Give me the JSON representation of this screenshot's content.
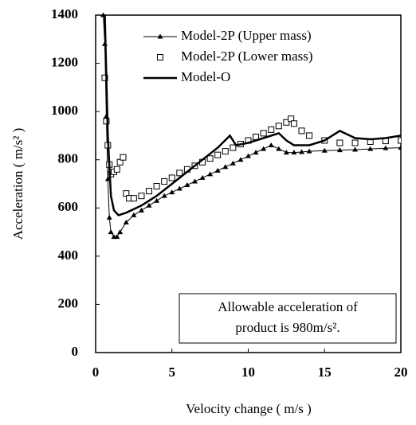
{
  "chart_data": {
    "type": "line",
    "x_label": "Velocity change ( m/s )",
    "y_label": "Acceleration ( m/s² )",
    "annotation": [
      "Allowable acceleration of",
      "product is 980m/s²."
    ],
    "xlim": [
      0,
      20
    ],
    "xticks": [
      0,
      5,
      10,
      15,
      20
    ],
    "ylim": [
      0,
      1400
    ],
    "yticks": [
      0,
      200,
      400,
      600,
      800,
      1000,
      1200,
      1400
    ],
    "grid": false,
    "legend": "upper left",
    "series": [
      {
        "name": "Model-2P (Upper mass)",
        "color": "#000000",
        "marker": "triangle",
        "line_width": 1,
        "x": [
          0.5,
          0.6,
          0.7,
          0.8,
          0.9,
          1.0,
          1.2,
          1.4,
          1.6,
          2,
          2.5,
          3,
          3.5,
          4,
          4.5,
          5,
          5.5,
          6,
          6.5,
          7,
          7.5,
          8,
          8.5,
          9,
          9.5,
          10,
          10.5,
          11,
          11.5,
          12,
          12.5,
          13,
          13.5,
          14,
          15,
          16,
          17,
          18,
          19,
          20
        ],
        "values": [
          1400,
          1280,
          980,
          720,
          560,
          500,
          480,
          480,
          500,
          540,
          570,
          590,
          610,
          630,
          650,
          665,
          680,
          695,
          710,
          725,
          740,
          755,
          770,
          785,
          800,
          815,
          830,
          845,
          860,
          845,
          830,
          830,
          832,
          835,
          838,
          840,
          842,
          845,
          848,
          850
        ]
      },
      {
        "name": "Model-2P (Lower mass)",
        "color": "#000000",
        "marker": "square",
        "line_width": 0,
        "x": [
          0.6,
          0.7,
          0.8,
          0.9,
          1.0,
          1.2,
          1.4,
          1.6,
          1.8,
          2.0,
          2.2,
          2.5,
          3,
          3.5,
          4,
          4.5,
          5,
          5.5,
          6,
          6.5,
          7,
          7.5,
          8,
          8.5,
          9,
          9.5,
          10,
          10.5,
          11,
          11.5,
          12,
          12.5,
          12.8,
          13,
          13.5,
          14,
          15,
          16,
          17,
          18,
          19,
          20
        ],
        "values": [
          1140,
          960,
          860,
          780,
          740,
          750,
          760,
          790,
          810,
          660,
          640,
          640,
          650,
          670,
          690,
          710,
          725,
          745,
          760,
          775,
          790,
          805,
          820,
          835,
          850,
          865,
          880,
          895,
          910,
          925,
          940,
          955,
          970,
          950,
          920,
          900,
          880,
          870,
          870,
          875,
          878,
          880
        ]
      },
      {
        "name": "Model-O",
        "color": "#000000",
        "marker": "none",
        "line_width": 2.5,
        "x": [
          0.6,
          0.8,
          1.0,
          1.2,
          1.5,
          2,
          3,
          4,
          5,
          6,
          7,
          8,
          8.8,
          9.2,
          10,
          11,
          12,
          12.5,
          13,
          14,
          15,
          15.5,
          16,
          17,
          18,
          19,
          20
        ],
        "values": [
          1400,
          900,
          650,
          590,
          570,
          580,
          610,
          650,
          700,
          750,
          800,
          850,
          900,
          860,
          870,
          890,
          910,
          880,
          860,
          860,
          880,
          900,
          920,
          890,
          885,
          890,
          900
        ]
      }
    ]
  }
}
